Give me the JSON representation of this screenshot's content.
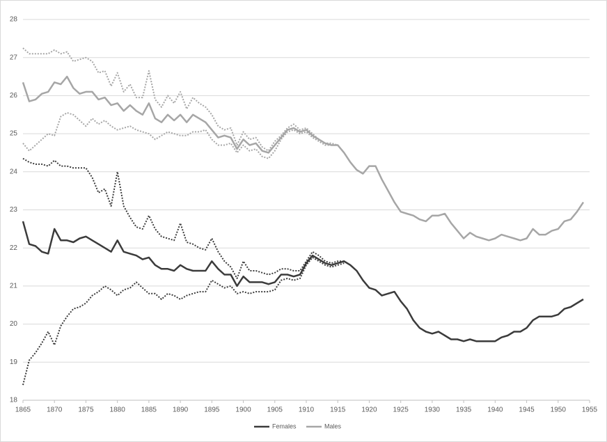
{
  "chart_data": {
    "type": "line",
    "x": [
      1865,
      1866,
      1867,
      1868,
      1869,
      1870,
      1871,
      1872,
      1873,
      1874,
      1875,
      1876,
      1877,
      1878,
      1879,
      1880,
      1881,
      1882,
      1883,
      1884,
      1885,
      1886,
      1887,
      1888,
      1889,
      1890,
      1891,
      1892,
      1893,
      1894,
      1895,
      1896,
      1897,
      1898,
      1899,
      1900,
      1901,
      1902,
      1903,
      1904,
      1905,
      1906,
      1907,
      1908,
      1909,
      1910,
      1911,
      1912,
      1913,
      1914,
      1915,
      1916,
      1917,
      1918,
      1919,
      1920,
      1921,
      1922,
      1923,
      1924,
      1925,
      1926,
      1927,
      1928,
      1929,
      1930,
      1931,
      1932,
      1933,
      1934,
      1935,
      1936,
      1937,
      1938,
      1939,
      1940,
      1941,
      1942,
      1943,
      1944,
      1945,
      1946,
      1947,
      1948,
      1949,
      1950,
      1951,
      1952,
      1953,
      1954
    ],
    "series": [
      {
        "name": "Females",
        "color": "#3b3b3b",
        "style": "solid",
        "values": [
          22.7,
          22.1,
          22.05,
          21.9,
          21.85,
          22.5,
          22.2,
          22.2,
          22.15,
          22.25,
          22.3,
          22.2,
          22.1,
          22.0,
          21.9,
          22.2,
          21.9,
          21.85,
          21.8,
          21.7,
          21.75,
          21.55,
          21.45,
          21.45,
          21.4,
          21.55,
          21.45,
          21.4,
          21.4,
          21.4,
          21.65,
          21.45,
          21.3,
          21.3,
          21.0,
          21.25,
          21.1,
          21.1,
          21.1,
          21.05,
          21.1,
          21.3,
          21.3,
          21.25,
          21.3,
          21.6,
          21.8,
          21.7,
          21.6,
          21.55,
          21.6,
          21.65,
          21.55,
          21.4,
          21.15,
          20.95,
          20.9,
          20.75,
          20.8,
          20.85,
          20.6,
          20.4,
          20.1,
          19.9,
          19.8,
          19.75,
          19.8,
          19.7,
          19.6,
          19.6,
          19.55,
          19.6,
          19.55,
          19.55,
          19.55,
          19.55,
          19.65,
          19.7,
          19.8,
          19.8,
          19.9,
          20.1,
          20.2,
          20.2,
          20.2,
          20.25,
          20.4,
          20.45,
          20.55,
          20.65
        ]
      },
      {
        "name": "Males",
        "color": "#a6a6a6",
        "style": "solid",
        "values": [
          26.35,
          25.85,
          25.9,
          26.05,
          26.1,
          26.35,
          26.3,
          26.5,
          26.2,
          26.05,
          26.1,
          26.1,
          25.9,
          25.95,
          25.75,
          25.8,
          25.6,
          25.75,
          25.6,
          25.5,
          25.8,
          25.4,
          25.3,
          25.5,
          25.35,
          25.5,
          25.3,
          25.5,
          25.4,
          25.3,
          25.1,
          24.9,
          24.95,
          24.9,
          24.6,
          24.85,
          24.7,
          24.75,
          24.55,
          24.5,
          24.7,
          24.9,
          25.1,
          25.15,
          25.05,
          25.1,
          24.95,
          24.85,
          24.75,
          24.7,
          24.7,
          24.5,
          24.25,
          24.05,
          23.95,
          24.15,
          24.15,
          23.8,
          23.5,
          23.2,
          22.95,
          22.9,
          22.85,
          22.75,
          22.7,
          22.85,
          22.85,
          22.9,
          22.65,
          22.45,
          22.25,
          22.4,
          22.3,
          22.25,
          22.2,
          22.25,
          22.35,
          22.3,
          22.25,
          22.2,
          22.25,
          22.5,
          22.35,
          22.35,
          22.45,
          22.5,
          22.7,
          22.75,
          22.95,
          23.2
        ]
      },
      {
        "color": "#3b3b3b",
        "style": "dotted",
        "values": [
          24.35,
          24.25,
          24.2,
          24.2,
          24.15,
          24.3,
          24.15,
          24.15,
          24.1,
          24.1,
          24.1,
          23.85,
          23.45,
          23.55,
          23.1,
          24.0,
          23.1,
          22.8,
          22.55,
          22.5,
          22.85,
          22.5,
          22.3,
          22.25,
          22.2,
          22.65,
          22.15,
          22.1,
          22.0,
          21.95,
          22.25,
          21.9,
          21.65,
          21.5,
          21.2,
          21.65,
          21.4,
          21.4,
          21.35,
          21.3,
          21.35,
          21.45,
          21.45,
          21.4,
          21.4,
          21.65,
          21.9,
          21.8,
          21.65,
          21.6,
          21.65,
          21.65,
          null,
          null,
          null,
          null,
          null,
          null,
          null,
          null,
          null,
          null,
          null,
          null,
          null,
          null,
          null,
          null,
          null,
          null,
          null,
          null,
          null,
          null,
          null,
          null,
          null,
          null,
          null,
          null,
          null,
          null,
          null,
          null,
          null,
          null,
          null,
          null,
          null,
          null
        ]
      },
      {
        "color": "#3b3b3b",
        "style": "dotted",
        "values": [
          18.4,
          19.05,
          19.25,
          19.5,
          19.8,
          19.45,
          19.95,
          20.2,
          20.4,
          20.45,
          20.55,
          20.75,
          20.85,
          21.0,
          20.9,
          20.75,
          20.9,
          20.95,
          21.1,
          20.95,
          20.8,
          20.8,
          20.65,
          20.8,
          20.75,
          20.65,
          20.75,
          20.8,
          20.85,
          20.85,
          21.15,
          21.05,
          20.95,
          21.0,
          20.8,
          20.85,
          20.8,
          20.85,
          20.85,
          20.85,
          20.9,
          21.15,
          21.2,
          21.15,
          21.2,
          21.55,
          21.75,
          21.65,
          21.55,
          21.5,
          21.55,
          21.6,
          null,
          null,
          null,
          null,
          null,
          null,
          null,
          null,
          null,
          null,
          null,
          null,
          null,
          null,
          null,
          null,
          null,
          null,
          null,
          null,
          null,
          null,
          null,
          null,
          null,
          null,
          null,
          null,
          null,
          null,
          null,
          null,
          null,
          null,
          null,
          null,
          null,
          null
        ]
      },
      {
        "color": "#a6a6a6",
        "style": "dotted",
        "values": [
          27.25,
          27.1,
          27.1,
          27.1,
          27.1,
          27.2,
          27.1,
          27.15,
          26.9,
          26.95,
          27.0,
          26.9,
          26.6,
          26.65,
          26.25,
          26.6,
          26.1,
          26.3,
          25.95,
          25.95,
          26.65,
          25.9,
          25.7,
          26.0,
          25.8,
          26.1,
          25.65,
          25.95,
          25.8,
          25.7,
          25.5,
          25.2,
          25.1,
          25.15,
          24.7,
          25.05,
          24.85,
          24.9,
          24.65,
          24.55,
          24.8,
          24.95,
          25.15,
          25.25,
          25.1,
          25.15,
          25.0,
          24.85,
          24.75,
          24.75,
          24.7,
          null,
          null,
          null,
          null,
          null,
          null,
          null,
          null,
          null,
          null,
          null,
          null,
          null,
          null,
          null,
          null,
          null,
          null,
          null,
          null,
          null,
          null,
          null,
          null,
          null,
          null,
          null,
          null,
          null,
          null,
          null,
          null,
          null,
          null,
          null,
          null,
          null,
          null,
          null
        ]
      },
      {
        "color": "#a6a6a6",
        "style": "dotted",
        "values": [
          24.75,
          24.55,
          24.7,
          24.85,
          25.0,
          24.95,
          25.45,
          25.55,
          25.5,
          25.35,
          25.2,
          25.4,
          25.25,
          25.35,
          25.2,
          25.1,
          25.15,
          25.2,
          25.1,
          25.05,
          25.0,
          24.85,
          24.95,
          25.05,
          25.0,
          24.95,
          24.95,
          25.05,
          25.05,
          25.1,
          24.85,
          24.7,
          24.7,
          24.75,
          24.5,
          24.7,
          24.55,
          24.6,
          24.4,
          24.35,
          24.55,
          24.85,
          25.05,
          25.1,
          25.0,
          25.05,
          24.9,
          24.8,
          24.7,
          24.7,
          24.7,
          null,
          null,
          null,
          null,
          null,
          null,
          null,
          null,
          null,
          null,
          null,
          null,
          null,
          null,
          null,
          null,
          null,
          null,
          null,
          null,
          null,
          null,
          null,
          null,
          null,
          null,
          null,
          null,
          null,
          null,
          null,
          null,
          null,
          null,
          null,
          null,
          null,
          null,
          null
        ]
      }
    ],
    "xlim": [
      1865,
      1955
    ],
    "xticks": [
      1865,
      1870,
      1875,
      1880,
      1885,
      1890,
      1895,
      1900,
      1905,
      1910,
      1915,
      1920,
      1925,
      1930,
      1935,
      1940,
      1945,
      1950,
      1955
    ],
    "ylim": [
      18,
      28
    ],
    "yticks": [
      18,
      19,
      20,
      21,
      22,
      23,
      24,
      25,
      26,
      27,
      28
    ],
    "grid": true,
    "legend": "bottom"
  }
}
